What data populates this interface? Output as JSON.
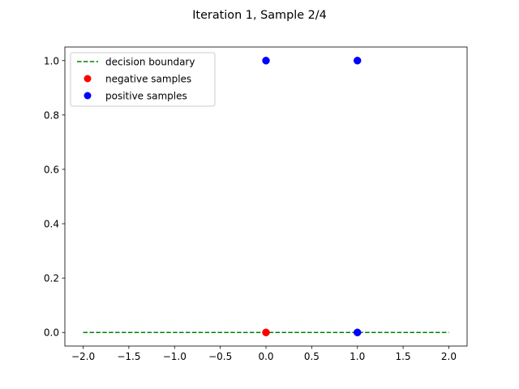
{
  "chart_data": {
    "type": "scatter",
    "title": "Iteration 1, Sample 2/4",
    "xlabel": "",
    "ylabel": "",
    "xlim": [
      -2.2,
      2.2
    ],
    "ylim": [
      -0.05,
      1.05
    ],
    "xticks": [
      -2.0,
      -1.5,
      -1.0,
      -0.5,
      0.0,
      0.5,
      1.0,
      1.5,
      2.0
    ],
    "xtick_labels": [
      "−2.0",
      "−1.5",
      "−1.0",
      "−0.5",
      "0.0",
      "0.5",
      "1.0",
      "1.5",
      "2.0"
    ],
    "yticks": [
      0.0,
      0.2,
      0.4,
      0.6,
      0.8,
      1.0
    ],
    "ytick_labels": [
      "0.0",
      "0.2",
      "0.4",
      "0.6",
      "0.8",
      "1.0"
    ],
    "grid": false,
    "legend_position": "top-left",
    "series": [
      {
        "name": "decision boundary",
        "kind": "line",
        "style": "dashed",
        "color": "#008000",
        "x": [
          -2.0,
          2.0
        ],
        "y": [
          0.0,
          0.0
        ]
      },
      {
        "name": "negative samples",
        "kind": "scatter",
        "color": "#ff0000",
        "x": [
          0.0
        ],
        "y": [
          0.0
        ]
      },
      {
        "name": "positive samples",
        "kind": "scatter",
        "color": "#0000ff",
        "x": [
          0.0,
          1.0,
          1.0
        ],
        "y": [
          1.0,
          1.0,
          0.0
        ]
      }
    ]
  }
}
